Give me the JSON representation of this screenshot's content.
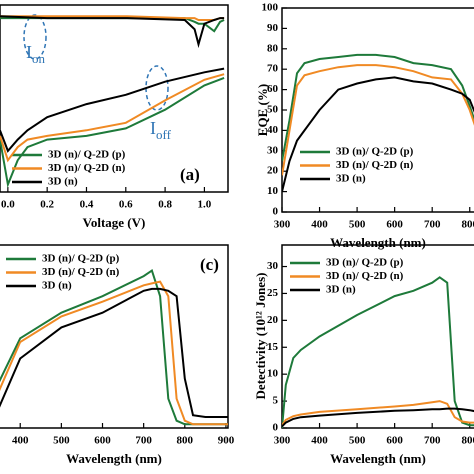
{
  "chart_data": [
    {
      "type": "line",
      "panel_label": "(a)",
      "xlabel": "Voltage (V)",
      "xlim": [
        -0.04,
        1.12
      ],
      "ylim": [
        0,
        100
      ],
      "xticks": [
        {
          "value": 0,
          "label": "0.0"
        },
        {
          "value": 0.2,
          "label": "0.2"
        },
        {
          "value": 0.4,
          "label": "0.4"
        },
        {
          "value": 0.6,
          "label": "0.6"
        },
        {
          "value": 0.8,
          "label": "0.8"
        },
        {
          "value": 1,
          "label": "1.0"
        }
      ],
      "annotations": [
        {
          "text": "I",
          "sub": "on"
        },
        {
          "text": "I",
          "sub": "off"
        }
      ],
      "x": [
        -0.04,
        0,
        0.05,
        0.1,
        0.2,
        0.4,
        0.6,
        0.8,
        1.0,
        1.1
      ],
      "on_x": [
        -0.04,
        0.2,
        0.6,
        0.9,
        0.95,
        0.97,
        1.0,
        1.05,
        1.08,
        1.1
      ],
      "series": [
        {
          "name": "3D (n)/ Q-2D (p)",
          "color": "#1e7a3a",
          "values": [
            28,
            4,
            17,
            24,
            28,
            30,
            34,
            44,
            57,
            61
          ],
          "on_values": [
            93,
            93,
            93,
            93,
            91,
            90,
            90,
            86,
            91,
            92
          ]
        },
        {
          "name": "3D (n)/ Q-2D (n)",
          "color": "#f08a24",
          "values": [
            30,
            17,
            24,
            28,
            30,
            33,
            37,
            49,
            60,
            63
          ],
          "on_values": [
            94,
            94,
            94,
            93,
            93,
            92,
            92,
            92,
            93,
            93
          ]
        },
        {
          "name": "3D (n)",
          "color": "#000000",
          "values": [
            33,
            22,
            28,
            33,
            40,
            47,
            52,
            59,
            64,
            66
          ],
          "on_values": [
            94,
            93,
            93,
            92,
            87,
            79,
            90,
            92,
            93,
            93
          ]
        }
      ]
    },
    {
      "type": "line",
      "xlabel": "Wavelength (nm)",
      "ylabel": "EQE (%)",
      "xlim": [
        300,
        822
      ],
      "ylim": [
        0,
        100
      ],
      "xticks": [
        300,
        400,
        500,
        600,
        700,
        800
      ],
      "yticks": [
        0,
        10,
        20,
        30,
        40,
        50,
        60,
        70,
        80,
        90,
        100
      ],
      "x": [
        300,
        320,
        340,
        360,
        400,
        450,
        500,
        550,
        600,
        650,
        700,
        750,
        780,
        800,
        822
      ],
      "series": [
        {
          "name": "3D (n)/ Q-2D (p)",
          "color": "#1e7a3a",
          "values": [
            25,
            45,
            68,
            73,
            75,
            76,
            77,
            77,
            76,
            73,
            72,
            70,
            62,
            52,
            40
          ]
        },
        {
          "name": "3D (n)/ Q-2D (n)",
          "color": "#f08a24",
          "values": [
            18,
            40,
            62,
            67,
            69,
            71,
            72,
            72,
            71,
            69,
            66,
            65,
            58,
            50,
            38
          ]
        },
        {
          "name": "3D (n)",
          "color": "#000000",
          "values": [
            10,
            25,
            35,
            40,
            50,
            60,
            63,
            65,
            66,
            64,
            63,
            60,
            58,
            55,
            45
          ]
        }
      ]
    },
    {
      "type": "line",
      "panel_label": "(c)",
      "xlabel": "Wavelength (nm)",
      "xlim": [
        346,
        905
      ],
      "ylim": [
        0,
        100
      ],
      "xticks": [
        400,
        500,
        600,
        700,
        800,
        900
      ],
      "x": [
        346,
        400,
        500,
        600,
        700,
        720,
        740,
        760,
        780,
        800,
        820,
        850,
        905
      ],
      "series": [
        {
          "name": "3D (n)/ Q-2D (p)",
          "color": "#1e7a3a",
          "values": [
            24,
            49,
            63,
            72,
            83,
            86,
            72,
            16,
            4,
            2,
            2,
            2,
            2
          ]
        },
        {
          "name": "3D (n)/ Q-2D (n)",
          "color": "#f08a24",
          "values": [
            19,
            47,
            61,
            69,
            78,
            79,
            80,
            72,
            16,
            4,
            2,
            2,
            2
          ]
        },
        {
          "name": "3D (n)",
          "color": "#000000",
          "values": [
            10,
            38,
            55,
            63,
            75,
            76,
            76,
            75,
            72,
            27,
            7,
            6,
            6
          ]
        }
      ]
    },
    {
      "type": "line",
      "xlabel": "Wavelength (nm)",
      "ylabel": "Detectivity (10¹² Jones)",
      "xlim": [
        300,
        822
      ],
      "ylim": [
        0,
        34
      ],
      "xticks": [
        300,
        400,
        500,
        600,
        700,
        800
      ],
      "yticks": [
        0,
        5,
        10,
        15,
        20,
        25,
        30
      ],
      "x": [
        300,
        310,
        330,
        350,
        400,
        500,
        600,
        650,
        700,
        720,
        740,
        760,
        780,
        800,
        822
      ],
      "series": [
        {
          "name": "3D (n)/ Q-2D (p)",
          "color": "#1e7a3a",
          "values": [
            0,
            8,
            13,
            14.5,
            17,
            21,
            24.5,
            25.5,
            27,
            28,
            27,
            5,
            1,
            0.5,
            0.5
          ]
        },
        {
          "name": "3D (n)/ Q-2D (n)",
          "color": "#f08a24",
          "values": [
            0.5,
            1.5,
            2.2,
            2.5,
            3,
            3.5,
            4,
            4.3,
            4.8,
            5,
            4.5,
            2,
            1.2,
            1,
            1
          ]
        },
        {
          "name": "3D (n)",
          "color": "#000000",
          "values": [
            0.3,
            1,
            1.7,
            2,
            2.3,
            2.8,
            3.2,
            3.3,
            3.5,
            3.5,
            3.6,
            3.6,
            3.5,
            3.3,
            3
          ]
        }
      ]
    }
  ]
}
